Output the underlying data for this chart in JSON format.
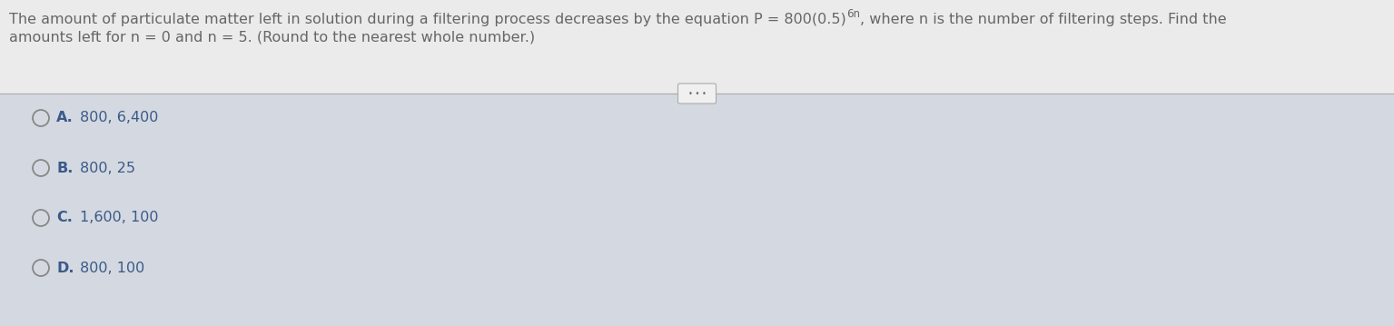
{
  "question_part1": "The amount of particulate matter left in solution during a filtering process decreases by the equation P = 800(0.5)",
  "superscript": "6n",
  "question_suffix": ", where n is the number of filtering steps. Find the",
  "question_line2": "amounts left for n = 0 and n = 5. (Round to the nearest whole number.)",
  "choices": [
    {
      "label": "A.",
      "text": "800, 6,400"
    },
    {
      "label": "B.",
      "text": "800, 25"
    },
    {
      "label": "C.",
      "text": "1,600, 100"
    },
    {
      "label": "D.",
      "text": "800, 100"
    }
  ],
  "bg_top": "#ebebeb",
  "bg_bottom": "#d4d8e0",
  "text_color": "#666666",
  "choice_label_color": "#3a5a8a",
  "choice_text_color": "#3a5a8a",
  "divider_color": "#aaaaaa",
  "btn_bg": "#f0f0f0",
  "btn_border": "#aaaaaa",
  "circle_color": "#888888"
}
